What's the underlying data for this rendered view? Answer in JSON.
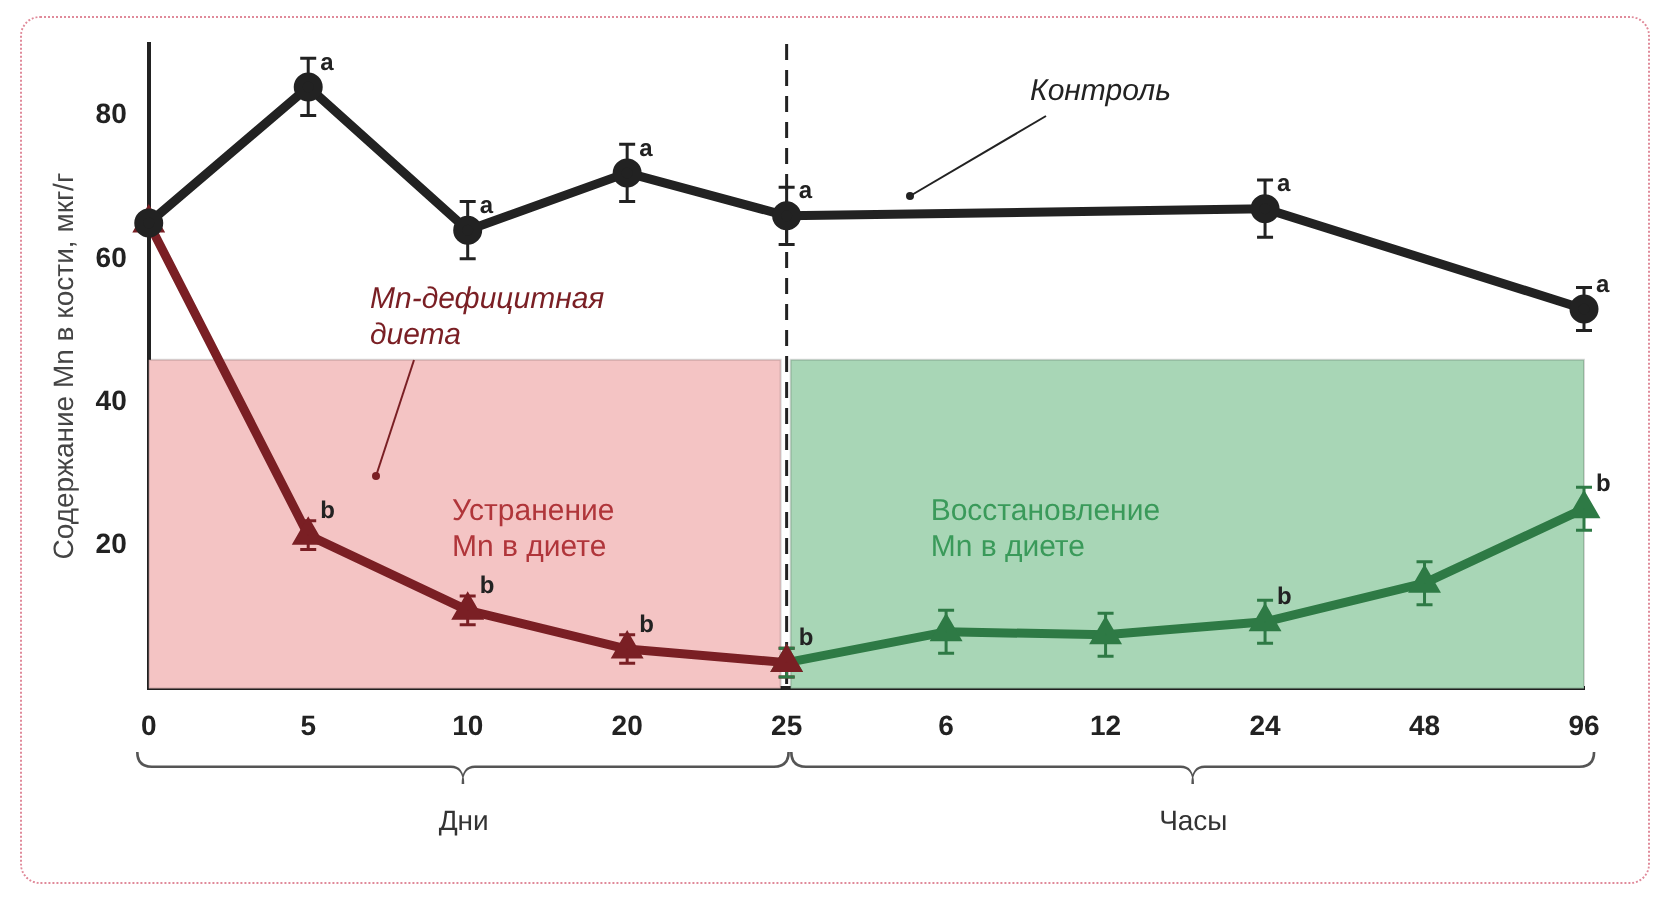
{
  "chart_data": {
    "type": "line",
    "ylabel": "Содержание Mn в кости, мкг/г",
    "categories": [
      "0",
      "5",
      "10",
      "20",
      "25",
      "6",
      "12",
      "24",
      "48",
      "96"
    ],
    "ylim": [
      0,
      90
    ],
    "yticks": [
      20,
      40,
      60,
      80
    ],
    "grid": false,
    "legend": false,
    "series": [
      {
        "name": "Контроль",
        "color": "#222222",
        "marker": "circle",
        "values": [
          65,
          84,
          64,
          72,
          66,
          null,
          null,
          67,
          null,
          53
        ],
        "errors": [
          null,
          4,
          4,
          4,
          4,
          null,
          null,
          4,
          null,
          3
        ]
      },
      {
        "name": "Mn-дефицитная диета",
        "color": "#7a1f24",
        "marker": "triangle",
        "values": [
          65,
          21.4,
          10.9,
          5.5,
          3.6,
          null,
          null,
          null,
          null,
          null
        ],
        "errors": [
          null,
          2,
          2,
          2,
          2,
          null,
          null,
          null,
          null,
          null
        ]
      },
      {
        "color": "#2e7a45",
        "marker": "triangle",
        "values": [
          null,
          null,
          null,
          null,
          3.6,
          7.9,
          7.5,
          9.3,
          14.7,
          25.1
        ],
        "errors": [
          null,
          null,
          null,
          null,
          2,
          3,
          3,
          3,
          3,
          3
        ]
      }
    ],
    "ref_lines": [
      {
        "axis": "x",
        "value": "25",
        "color": "#222222",
        "line_style": "dashed"
      }
    ],
    "bands": [
      {
        "axis": "x",
        "from": "0",
        "to": "25",
        "label": "Устранение\nMn в диете",
        "color": "#f4c4c4"
      },
      {
        "axis": "x",
        "from": "25",
        "to": "96",
        "label": "Восстановление\nMn в диете",
        "color": "#a8d6b6"
      }
    ],
    "annotations": [
      {
        "text": "a",
        "x": "5",
        "y": 84
      },
      {
        "text": "a",
        "x": "10",
        "y": 64
      },
      {
        "text": "a",
        "x": "20",
        "y": 72
      },
      {
        "text": "a",
        "x": "25",
        "y": 66
      },
      {
        "text": "a",
        "x": "24",
        "y": 67
      },
      {
        "text": "a",
        "x": "96",
        "y": 53
      },
      {
        "text": "b",
        "x": "5",
        "y": 21.4
      },
      {
        "text": "b",
        "x": "10",
        "y": 10.9
      },
      {
        "text": "b",
        "x": "20",
        "y": 5.5
      },
      {
        "text": "b",
        "x": "25",
        "y": 3.6
      },
      {
        "text": "b",
        "x": "24",
        "y": 9.3
      },
      {
        "text": "b",
        "x": "96",
        "y": 25.1
      },
      "Дни",
      "Часы"
    ]
  }
}
